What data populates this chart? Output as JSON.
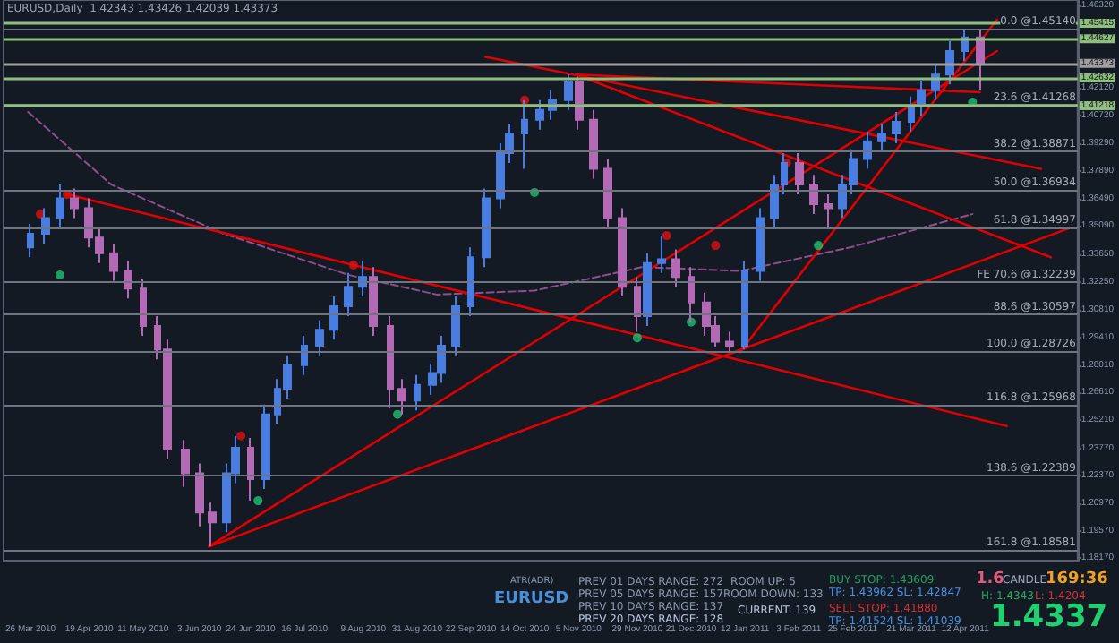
{
  "chart_data": {
    "type": "candlestick",
    "title": "EURUSD,Daily  1.42343 1.43426 1.42039 1.43373",
    "colors": [
      "#4a7de0",
      "#4a7de0",
      "#4a7de0",
      "#b36ab5",
      "#b36ab5",
      "#b36ab5",
      "#b36ab5",
      "#b36ab5",
      "#b36ab5",
      "#b36ab5",
      "#b36ab5",
      "#b36ab5",
      "#b36ab5",
      "#b36ab5",
      "#4a7de0",
      "#4a7de0",
      "#b36ab5",
      "#4a7de0",
      "#4a7de0",
      "#4a7de0",
      "#4a7de0",
      "#4a7de0",
      "#4a7de0",
      "#4a7de0",
      "#4a7de0",
      "#b36ab5",
      "#b36ab5",
      "#b36ab5",
      "#4a7de0",
      "#4a7de0",
      "#4a7de0",
      "#4a7de0",
      "#4a7de0",
      "#4a7de0",
      "#4a7de0",
      "#4a7de0",
      "#4a7de0",
      "#4a7de0",
      "#4a7de0",
      "#4a7de0",
      "#b36ab5",
      "#b36ab5",
      "#b36ab5",
      "#b36ab5",
      "#b36ab5",
      "#4a7de0",
      "#4a7de0",
      "#b36ab5",
      "#b36ab5",
      "#b36ab5",
      "#b36ab5",
      "#b36ab5",
      "#4a7de0",
      "#4a7de0",
      "#4a7de0",
      "#4a7de0",
      "#b36ab5",
      "#b36ab5",
      "#b36ab5",
      "#4a7de0",
      "#4a7de0",
      "#4a7de0",
      "#4a7de0",
      "#4a7de0",
      "#4a7de0",
      "#4a7de0",
      "#4a7de0",
      "#4a7de0",
      "#4a7de0",
      "#b36ab5"
    ],
    "x": [
      "2010-03-26",
      "2010-04-01",
      "2010-04-07",
      "2010-04-13",
      "2010-04-19",
      "2010-04-23",
      "2010-04-29",
      "2010-05-05",
      "2010-05-11",
      "2010-05-17",
      "2010-05-21",
      "2010-05-28",
      "2010-06-03",
      "2010-06-08",
      "2010-06-14",
      "2010-06-18",
      "2010-06-24",
      "2010-06-30",
      "2010-07-05",
      "2010-07-09",
      "2010-07-16",
      "2010-07-22",
      "2010-07-28",
      "2010-08-03",
      "2010-08-09",
      "2010-08-13",
      "2010-08-20",
      "2010-08-25",
      "2010-08-31",
      "2010-09-06",
      "2010-09-10",
      "2010-09-16",
      "2010-09-22",
      "2010-09-28",
      "2010-10-04",
      "2010-10-08",
      "2010-10-14",
      "2010-10-20",
      "2010-10-25",
      "2010-11-01",
      "2010-11-05",
      "2010-11-11",
      "2010-11-17",
      "2010-11-23",
      "2010-11-29",
      "2010-12-03",
      "2010-12-09",
      "2010-12-15",
      "2010-12-21",
      "2010-12-27",
      "2010-12-31",
      "2011-01-06",
      "2011-01-12",
      "2011-01-18",
      "2011-01-24",
      "2011-01-28",
      "2011-02-03",
      "2011-02-09",
      "2011-02-15",
      "2011-02-21",
      "2011-02-25",
      "2011-03-03",
      "2011-03-09",
      "2011-03-15",
      "2011-03-21",
      "2011-03-25",
      "2011-03-31",
      "2011-04-06",
      "2011-04-12",
      "2011-04-18"
    ],
    "ohlc": [
      [
        1.34,
        1.352,
        1.335,
        1.347
      ],
      [
        1.347,
        1.36,
        1.342,
        1.355
      ],
      [
        1.355,
        1.372,
        1.35,
        1.365
      ],
      [
        1.365,
        1.37,
        1.355,
        1.36
      ],
      [
        1.36,
        1.365,
        1.34,
        1.345
      ],
      [
        1.345,
        1.35,
        1.332,
        1.337
      ],
      [
        1.337,
        1.342,
        1.323,
        1.328
      ],
      [
        1.328,
        1.333,
        1.314,
        1.319
      ],
      [
        1.319,
        1.324,
        1.295,
        1.3
      ],
      [
        1.3,
        1.305,
        1.283,
        1.288
      ],
      [
        1.288,
        1.293,
        1.232,
        1.237
      ],
      [
        1.237,
        1.242,
        1.218,
        1.225
      ],
      [
        1.225,
        1.23,
        1.198,
        1.205
      ],
      [
        1.205,
        1.21,
        1.1877,
        1.2
      ],
      [
        1.2,
        1.23,
        1.195,
        1.225
      ],
      [
        1.225,
        1.244,
        1.22,
        1.238
      ],
      [
        1.238,
        1.243,
        1.211,
        1.222
      ],
      [
        1.222,
        1.26,
        1.217,
        1.255
      ],
      [
        1.255,
        1.273,
        1.25,
        1.268
      ],
      [
        1.268,
        1.285,
        1.263,
        1.28
      ],
      [
        1.28,
        1.295,
        1.275,
        1.29
      ],
      [
        1.29,
        1.303,
        1.285,
        1.298
      ],
      [
        1.298,
        1.315,
        1.293,
        1.31
      ],
      [
        1.31,
        1.327,
        1.305,
        1.32
      ],
      [
        1.32,
        1.333,
        1.315,
        1.325
      ],
      [
        1.325,
        1.33,
        1.295,
        1.3
      ],
      [
        1.3,
        1.305,
        1.258,
        1.268
      ],
      [
        1.268,
        1.273,
        1.255,
        1.262
      ],
      [
        1.262,
        1.275,
        1.257,
        1.27
      ],
      [
        1.27,
        1.281,
        1.265,
        1.276
      ],
      [
        1.276,
        1.295,
        1.271,
        1.29
      ],
      [
        1.29,
        1.315,
        1.285,
        1.31
      ],
      [
        1.31,
        1.34,
        1.305,
        1.335
      ],
      [
        1.335,
        1.37,
        1.33,
        1.365
      ],
      [
        1.365,
        1.393,
        1.36,
        1.388
      ],
      [
        1.388,
        1.403,
        1.383,
        1.398
      ],
      [
        1.398,
        1.415,
        1.38,
        1.405
      ],
      [
        1.405,
        1.415,
        1.4,
        1.41
      ],
      [
        1.41,
        1.42,
        1.405,
        1.415
      ],
      [
        1.415,
        1.4282,
        1.41,
        1.424
      ],
      [
        1.424,
        1.427,
        1.4,
        1.405
      ],
      [
        1.405,
        1.41,
        1.375,
        1.38
      ],
      [
        1.38,
        1.385,
        1.35,
        1.355
      ],
      [
        1.355,
        1.36,
        1.315,
        1.32
      ],
      [
        1.32,
        1.325,
        1.297,
        1.305
      ],
      [
        1.305,
        1.337,
        1.3,
        1.332
      ],
      [
        1.332,
        1.346,
        1.327,
        1.334
      ],
      [
        1.334,
        1.339,
        1.32,
        1.325
      ],
      [
        1.325,
        1.33,
        1.302,
        1.312
      ],
      [
        1.312,
        1.317,
        1.295,
        1.3
      ],
      [
        1.3,
        1.305,
        1.289,
        1.292
      ],
      [
        1.292,
        1.297,
        1.2867,
        1.29
      ],
      [
        1.29,
        1.333,
        1.288,
        1.328
      ],
      [
        1.328,
        1.36,
        1.323,
        1.355
      ],
      [
        1.355,
        1.377,
        1.35,
        1.372
      ],
      [
        1.372,
        1.388,
        1.367,
        1.383
      ],
      [
        1.383,
        1.388,
        1.367,
        1.372
      ],
      [
        1.372,
        1.377,
        1.357,
        1.362
      ],
      [
        1.362,
        1.367,
        1.35,
        1.36
      ],
      [
        1.36,
        1.377,
        1.355,
        1.372
      ],
      [
        1.372,
        1.39,
        1.367,
        1.385
      ],
      [
        1.385,
        1.399,
        1.38,
        1.394
      ],
      [
        1.394,
        1.403,
        1.389,
        1.398
      ],
      [
        1.398,
        1.409,
        1.393,
        1.404
      ],
      [
        1.404,
        1.417,
        1.399,
        1.412
      ],
      [
        1.412,
        1.425,
        1.407,
        1.42
      ],
      [
        1.42,
        1.433,
        1.415,
        1.428
      ],
      [
        1.428,
        1.445,
        1.423,
        1.44
      ],
      [
        1.44,
        1.4514,
        1.435,
        1.447
      ],
      [
        1.447,
        1.4505,
        1.4204,
        1.4337
      ]
    ],
    "series": [
      {
        "type": "line",
        "color": "#8e4f8c",
        "line_style": "dashed",
        "marker": "none",
        "x": [
          "2010-03-25",
          "2010-04-28",
          "2010-06-13",
          "2010-08-03",
          "2010-09-08",
          "2010-10-18",
          "2010-12-01",
          "2011-01-10",
          "2011-02-24",
          "2011-04-15"
        ],
        "values": [
          1.409,
          1.372,
          1.347,
          1.326,
          1.316,
          1.318,
          1.33,
          1.328,
          1.34,
          1.357
        ]
      },
      {
        "type": "line",
        "color": "#e00000",
        "x": [
          "2010-04-10",
          "2011-04-29"
        ],
        "values": [
          1.367,
          1.249
        ]
      },
      {
        "type": "line",
        "color": "#e00000",
        "x": [
          "2010-06-07",
          "2011-04-25"
        ],
        "values": [
          1.1877,
          1.44
        ]
      },
      {
        "type": "line",
        "color": "#e00000",
        "x": [
          "2010-06-07",
          "2011-05-25"
        ],
        "values": [
          1.1877,
          1.35
        ]
      },
      {
        "type": "line",
        "color": "#e00000",
        "x": [
          "2010-11-04",
          "2011-05-17"
        ],
        "values": [
          1.428,
          1.335
        ]
      },
      {
        "type": "line",
        "color": "#e00000",
        "x": [
          "2010-09-28",
          "2011-05-13"
        ],
        "values": [
          1.437,
          1.38
        ]
      },
      {
        "type": "line",
        "color": "#e00000",
        "x": [
          "2010-11-04",
          "2011-04-18"
        ],
        "values": [
          1.428,
          1.419
        ]
      },
      {
        "type": "line",
        "color": "#e00000",
        "x": [
          "2011-01-10",
          "2011-04-25"
        ],
        "values": [
          1.2867,
          1.456
        ]
      },
      {
        "type": "scatter",
        "color": "#e01010",
        "marker": "circle",
        "x": [
          "2010-03-30",
          "2010-04-10",
          "2010-06-20",
          "2010-08-05",
          "2010-10-14",
          "2010-12-11",
          "2010-12-31",
          "2011-01-29"
        ],
        "values": [
          1.357,
          1.367,
          1.244,
          1.331,
          1.415,
          1.346,
          1.341,
          1.383
        ]
      },
      {
        "type": "scatter",
        "color": "#20c070",
        "marker": "circle",
        "x": [
          "2010-04-07",
          "2010-06-27",
          "2010-08-23",
          "2010-10-18",
          "2010-11-29",
          "2010-12-21",
          "2011-02-11",
          "2011-04-15"
        ],
        "values": [
          1.326,
          1.211,
          1.255,
          1.368,
          1.294,
          1.302,
          1.341,
          1.414
        ]
      }
    ],
    "ref_lines": [
      {
        "axis": "y",
        "value": 1.4514,
        "label": "0.0 @1.45140",
        "color": "#6e7480"
      },
      {
        "axis": "y",
        "value": 1.41268,
        "label": "23.6 @1.41268",
        "color": "#6e7480"
      },
      {
        "axis": "y",
        "value": 1.38871,
        "label": "38.2 @1.38871",
        "color": "#6e7480"
      },
      {
        "axis": "y",
        "value": 1.36934,
        "label": "50.0 @1.36934",
        "color": "#6e7480"
      },
      {
        "axis": "y",
        "value": 1.34997,
        "label": "61.8 @1.34997",
        "color": "#6e7480"
      },
      {
        "axis": "y",
        "value": 1.32239,
        "label": "FE 70.6 @1.32239",
        "color": "#6e7480"
      },
      {
        "axis": "y",
        "value": 1.30597,
        "label": "88.6 @1.30597",
        "color": "#6e7480"
      },
      {
        "axis": "y",
        "value": 1.28726,
        "label": "100.0 @1.28726",
        "color": "#6e7480"
      },
      {
        "axis": "y",
        "value": 1.25968,
        "label": "116.8 @1.25968",
        "color": "#6e7480"
      },
      {
        "axis": "y",
        "value": 1.22389,
        "label": "138.6 @1.22389",
        "color": "#6e7480"
      },
      {
        "axis": "y",
        "value": 1.18581,
        "label": "161.8 @1.18581",
        "color": "#6e7480"
      },
      {
        "axis": "y",
        "value": 1.45415,
        "label": "1.45415",
        "color": "#8fbf7f"
      },
      {
        "axis": "y",
        "value": 1.44627,
        "label": "1.44627",
        "color": "#8fbf7f"
      },
      {
        "axis": "y",
        "value": 1.43373,
        "label": "1.43373",
        "color": "#a0a0a0"
      },
      {
        "axis": "y",
        "value": 1.42632,
        "label": "1.42632",
        "color": "#8fbf7f"
      },
      {
        "axis": "y",
        "value": 1.41218,
        "label": "1.41218",
        "color": "#8fbf7f"
      }
    ],
    "annotations": [
      "ATR(ADR)",
      "EURUSD",
      "PREV 01 DAYS RANGE: 272",
      "PREV 05 DAYS RANGE: 157",
      "PREV 10 DAYS RANGE: 137",
      "PREV 20 DAYS RANGE: 128",
      "ROOM UP: 5",
      "ROOM DOWN: 133",
      "CURRENT: 139",
      "BUY STOP: 1.43609",
      "TP: 1.43962 SL: 1.42847",
      "SELL STOP: 1.41880",
      "TP: 1.41524 SL: 1.41039",
      "1.6",
      "CANDLE",
      "169:36",
      "H: 1.4343",
      "L: 1.4204",
      "1.4337"
    ],
    "xlim": [
      "2010-03-15",
      "2011-05-28"
    ],
    "xticks": [
      {
        "value": "2010-03-26",
        "label": "26 Mar 2010"
      },
      {
        "value": "2010-04-19",
        "label": "19 Apr 2010"
      },
      {
        "value": "2010-05-11",
        "label": "11 May 2010"
      },
      {
        "value": "2010-06-03",
        "label": "3 Jun 2010"
      },
      {
        "value": "2010-06-24",
        "label": "24 Jun 2010"
      },
      {
        "value": "2010-07-16",
        "label": "16 Jul 2010"
      },
      {
        "value": "2010-08-09",
        "label": "9 Aug 2010"
      },
      {
        "value": "2010-08-31",
        "label": "31 Aug 2010"
      },
      {
        "value": "2010-09-22",
        "label": "22 Sep 2010"
      },
      {
        "value": "2010-10-14",
        "label": "14 Oct 2010"
      },
      {
        "value": "2010-11-05",
        "label": "5 Nov 2010"
      },
      {
        "value": "2010-11-29",
        "label": "29 Nov 2010"
      },
      {
        "value": "2010-12-21",
        "label": "21 Dec 2010"
      },
      {
        "value": "2011-01-12",
        "label": "12 Jan 2011"
      },
      {
        "value": "2011-02-03",
        "label": "3 Feb 2011"
      },
      {
        "value": "2011-02-25",
        "label": "25 Feb 2011"
      },
      {
        "value": "2011-03-21",
        "label": "21 Mar 2011"
      },
      {
        "value": "2011-04-12",
        "label": "12 Apr 2011"
      }
    ],
    "ylim": [
      1.1805,
      1.466
    ],
    "yticks": [
      {
        "value": 1.4632,
        "label": "1.46320"
      },
      {
        "value": 1.4212,
        "label": "1.42120"
      },
      {
        "value": 1.4072,
        "label": "1.40720"
      },
      {
        "value": 1.3929,
        "label": "1.39290"
      },
      {
        "value": 1.3789,
        "label": "1.37890"
      },
      {
        "value": 1.3649,
        "label": "1.36490"
      },
      {
        "value": 1.3509,
        "label": "1.35090"
      },
      {
        "value": 1.3365,
        "label": "1.33650"
      },
      {
        "value": 1.3225,
        "label": "1.32250"
      },
      {
        "value": 1.3081,
        "label": "1.30810"
      },
      {
        "value": 1.2941,
        "label": "1.29410"
      },
      {
        "value": 1.2801,
        "label": "1.28010"
      },
      {
        "value": 1.2661,
        "label": "1.26610"
      },
      {
        "value": 1.2521,
        "label": "1.25210"
      },
      {
        "value": 1.2377,
        "label": "1.23770"
      },
      {
        "value": 1.2237,
        "label": "1.22370"
      },
      {
        "value": 1.2097,
        "label": "1.20970"
      },
      {
        "value": 1.1957,
        "label": "1.19570"
      },
      {
        "value": 1.1817,
        "label": "1.18170"
      }
    ]
  }
}
